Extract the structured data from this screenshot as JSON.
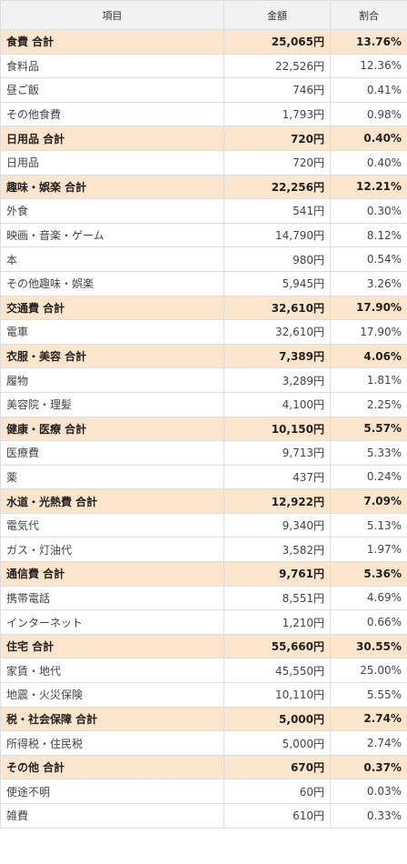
{
  "headers": {
    "item": "項目",
    "amount": "金額",
    "ratio": "割合"
  },
  "rows": [
    {
      "type": "total",
      "item": "食費 合計",
      "amount": "25,065円",
      "ratio": "13.76%"
    },
    {
      "type": "detail",
      "item": "食料品",
      "amount": "22,526円",
      "ratio": "12.36%"
    },
    {
      "type": "detail",
      "item": "昼ご飯",
      "amount": "746円",
      "ratio": "0.41%"
    },
    {
      "type": "detail",
      "item": "その他食費",
      "amount": "1,793円",
      "ratio": "0.98%"
    },
    {
      "type": "total",
      "item": "日用品 合計",
      "amount": "720円",
      "ratio": "0.40%"
    },
    {
      "type": "detail",
      "item": "日用品",
      "amount": "720円",
      "ratio": "0.40%"
    },
    {
      "type": "total",
      "item": "趣味・娯楽 合計",
      "amount": "22,256円",
      "ratio": "12.21%"
    },
    {
      "type": "detail",
      "item": "外食",
      "amount": "541円",
      "ratio": "0.30%"
    },
    {
      "type": "detail",
      "item": "映画・音楽・ゲーム",
      "amount": "14,790円",
      "ratio": "8.12%"
    },
    {
      "type": "detail",
      "item": "本",
      "amount": "980円",
      "ratio": "0.54%"
    },
    {
      "type": "detail",
      "item": "その他趣味・娯楽",
      "amount": "5,945円",
      "ratio": "3.26%"
    },
    {
      "type": "total",
      "item": "交通費 合計",
      "amount": "32,610円",
      "ratio": "17.90%"
    },
    {
      "type": "detail",
      "item": "電車",
      "amount": "32,610円",
      "ratio": "17.90%"
    },
    {
      "type": "total",
      "item": "衣服・美容 合計",
      "amount": "7,389円",
      "ratio": "4.06%"
    },
    {
      "type": "detail",
      "item": "履物",
      "amount": "3,289円",
      "ratio": "1.81%"
    },
    {
      "type": "detail",
      "item": "美容院・理髪",
      "amount": "4,100円",
      "ratio": "2.25%"
    },
    {
      "type": "total",
      "item": "健康・医療 合計",
      "amount": "10,150円",
      "ratio": "5.57%"
    },
    {
      "type": "detail",
      "item": "医療費",
      "amount": "9,713円",
      "ratio": "5.33%"
    },
    {
      "type": "detail",
      "item": "薬",
      "amount": "437円",
      "ratio": "0.24%"
    },
    {
      "type": "total",
      "item": "水道・光熱費 合計",
      "amount": "12,922円",
      "ratio": "7.09%"
    },
    {
      "type": "detail",
      "item": "電気代",
      "amount": "9,340円",
      "ratio": "5.13%"
    },
    {
      "type": "detail",
      "item": "ガス・灯油代",
      "amount": "3,582円",
      "ratio": "1.97%"
    },
    {
      "type": "total",
      "item": "通信費 合計",
      "amount": "9,761円",
      "ratio": "5.36%"
    },
    {
      "type": "detail",
      "item": "携帯電話",
      "amount": "8,551円",
      "ratio": "4.69%"
    },
    {
      "type": "detail",
      "item": "インターネット",
      "amount": "1,210円",
      "ratio": "0.66%"
    },
    {
      "type": "total",
      "item": "住宅 合計",
      "amount": "55,660円",
      "ratio": "30.55%"
    },
    {
      "type": "detail",
      "item": "家賃・地代",
      "amount": "45,550円",
      "ratio": "25.00%"
    },
    {
      "type": "detail",
      "item": "地震・火災保険",
      "amount": "10,110円",
      "ratio": "5.55%"
    },
    {
      "type": "total",
      "item": "税・社会保障 合計",
      "amount": "5,000円",
      "ratio": "2.74%"
    },
    {
      "type": "detail",
      "item": "所得税・住民税",
      "amount": "5,000円",
      "ratio": "2.74%"
    },
    {
      "type": "total",
      "item": "その他 合計",
      "amount": "670円",
      "ratio": "0.37%"
    },
    {
      "type": "detail",
      "item": "使途不明",
      "amount": "60円",
      "ratio": "0.03%"
    },
    {
      "type": "detail",
      "item": "雑費",
      "amount": "610円",
      "ratio": "0.33%"
    }
  ]
}
